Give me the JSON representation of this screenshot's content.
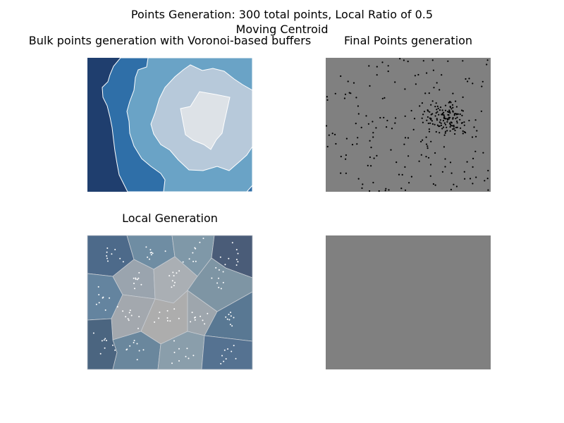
{
  "figure": {
    "suptitle_line1": "Points Generation: 300 total points, Local Ratio of 0.5",
    "suptitle_line2": "Moving Centroid"
  },
  "chart_data": [
    {
      "type": "heatmap",
      "title": "Bulk points generation with Voronoi-based buffers",
      "description_levels": 5,
      "colors": [
        "#1f3e6e",
        "#2f6fa8",
        "#6aa3c6",
        "#b7c9da",
        "#dde2e7"
      ],
      "grid": false,
      "axes": "off"
    },
    {
      "type": "scatter",
      "title": "Final Points generation",
      "point_count": 300,
      "background": "#808080",
      "point_color": "#000000",
      "grid": false,
      "axes": "off"
    },
    {
      "type": "heatmap",
      "title": "Local Generation",
      "cells": 15,
      "point_color": "#ffffff",
      "grid": false,
      "axes": "off"
    },
    {
      "type": "table",
      "title": "",
      "background": "#808080",
      "axes": "off"
    }
  ]
}
